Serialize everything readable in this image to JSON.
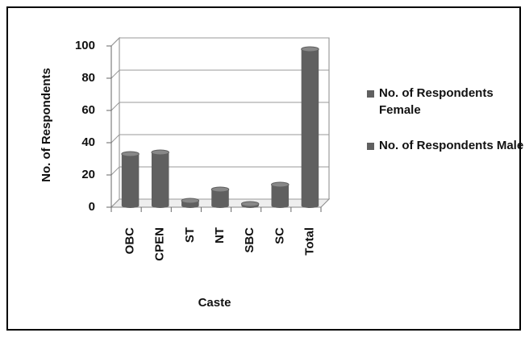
{
  "chart_data": {
    "type": "bar",
    "x_label": "Caste",
    "y_label": "No. of Respondents",
    "categories": [
      "OBC",
      "CPEN",
      "ST",
      "NT",
      "SBC",
      "SC",
      "Total"
    ],
    "series": [
      {
        "name": "No. of Respondents Female",
        "color": "#606060",
        "values": [
          33,
          34,
          4,
          11,
          2,
          14,
          98
        ]
      },
      {
        "name": "No. of Respondents Male",
        "color": "#606060",
        "values": [
          null,
          null,
          null,
          null,
          null,
          null,
          null
        ]
      }
    ],
    "ylim": [
      0,
      100
    ],
    "yticks": [
      0,
      20,
      40,
      60,
      80,
      100
    ],
    "grid": true,
    "legend": "right"
  }
}
